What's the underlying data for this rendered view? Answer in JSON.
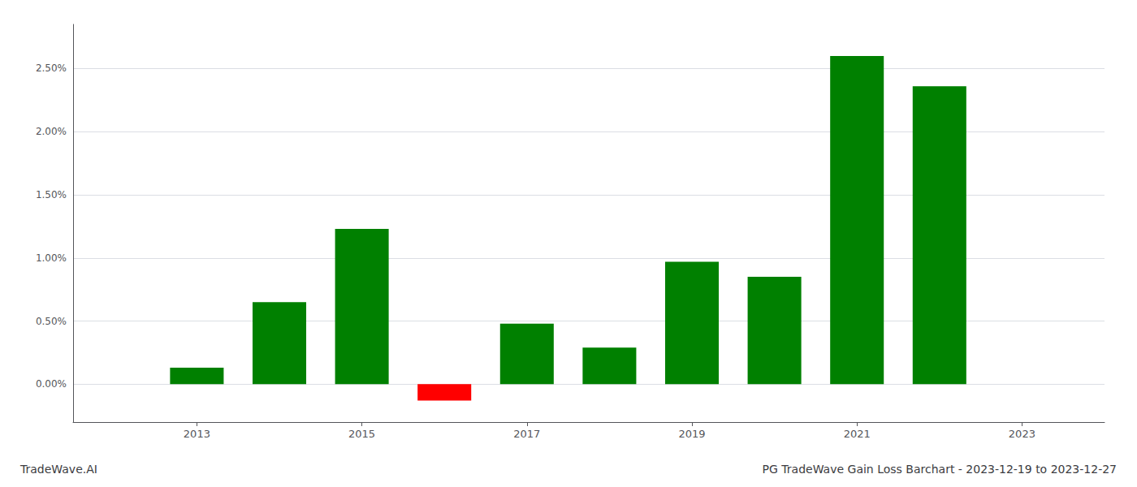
{
  "chart_data": {
    "type": "bar",
    "title": "PG TradeWave Gain Loss Barchart - 2023-12-19 to 2023-12-27",
    "annotations": [
      "TradeWave.AI"
    ],
    "x": [
      2013,
      2014,
      2015,
      2016,
      2017,
      2018,
      2019,
      2020,
      2021,
      2022
    ],
    "values": [
      0.13,
      0.65,
      1.23,
      -0.13,
      0.48,
      0.29,
      0.97,
      0.85,
      2.6,
      2.36
    ],
    "colors": [
      "#008000",
      "#008000",
      "#008000",
      "#ff0000",
      "#008000",
      "#008000",
      "#008000",
      "#008000",
      "#008000",
      "#008000"
    ],
    "xlim": [
      2011.5,
      2024.0
    ],
    "xticks": [
      2013,
      2015,
      2017,
      2019,
      2021,
      2023
    ],
    "ylim": [
      -0.3,
      2.85
    ],
    "yticks": [
      {
        "value": 0,
        "label": "0.00%"
      },
      {
        "value": 0.5,
        "label": "0.50%"
      },
      {
        "value": 1.0,
        "label": "1.00%"
      },
      {
        "value": 1.5,
        "label": "1.50%"
      },
      {
        "value": 2.0,
        "label": "2.00%"
      },
      {
        "value": 2.5,
        "label": "2.50%"
      }
    ],
    "grid": true
  }
}
